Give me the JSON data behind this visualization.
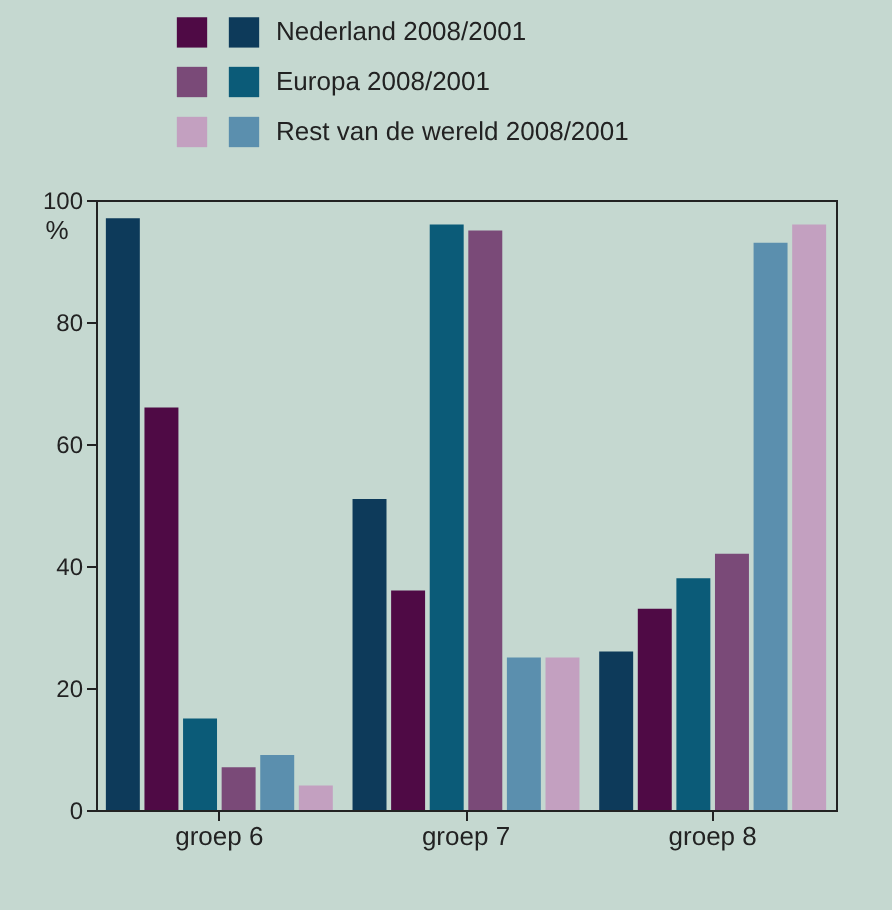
{
  "chart_data": {
    "type": "bar",
    "ylabel": "%",
    "categories": [
      "groep 6",
      "groep 7",
      "groep 8"
    ],
    "ylim": [
      0,
      100
    ],
    "yticks": [
      0,
      20,
      40,
      60,
      80,
      100
    ],
    "grid": false,
    "legend": "top",
    "series": [
      {
        "name": "Nederland 2008/2001",
        "color": "#0d3a5a",
        "values": [
          97,
          51,
          26
        ]
      },
      {
        "color": "#4f0a45",
        "values": [
          66,
          36,
          33
        ]
      },
      {
        "name": "Europa 2008/2001",
        "color": "#0b5b78",
        "values": [
          15,
          96,
          38
        ]
      },
      {
        "color": "#7a4a78",
        "values": [
          7,
          95,
          42
        ]
      },
      {
        "name": "Rest van de wereld 2008/2001",
        "color": "#5b8fae",
        "values": [
          9,
          25,
          93
        ]
      },
      {
        "color": "#c3a0c0",
        "values": [
          4,
          25,
          96
        ]
      }
    ]
  }
}
